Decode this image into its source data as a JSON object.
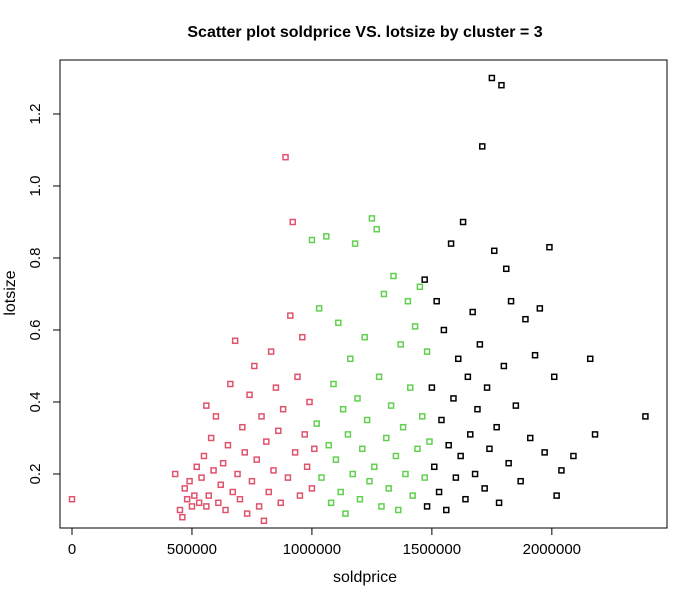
{
  "chart_data": {
    "type": "scatter",
    "title": "Scatter plot soldprice VS. lotsize by cluster = 3",
    "xlabel": "soldprice",
    "ylabel": "lotsize",
    "xlim": [
      -50000,
      2480000
    ],
    "ylim": [
      0.05,
      1.35
    ],
    "x_ticks": [
      0,
      500000,
      1000000,
      1500000,
      2000000
    ],
    "x_tick_labels": [
      "0",
      "500000",
      "1000000",
      "1500000",
      "2000000"
    ],
    "y_ticks": [
      0.2,
      0.4,
      0.6,
      0.8,
      1.0,
      1.2
    ],
    "y_tick_labels": [
      "0.2",
      "0.4",
      "0.6",
      "0.8",
      "1.0",
      "1.2"
    ],
    "grid": false,
    "legend": "none",
    "marker": "open-square",
    "series": [
      {
        "color": "#DF536B",
        "points": [
          [
            0,
            0.13
          ],
          [
            430000,
            0.2
          ],
          [
            450000,
            0.1
          ],
          [
            460000,
            0.08
          ],
          [
            470000,
            0.16
          ],
          [
            480000,
            0.13
          ],
          [
            490000,
            0.18
          ],
          [
            500000,
            0.11
          ],
          [
            510000,
            0.14
          ],
          [
            520000,
            0.22
          ],
          [
            530000,
            0.12
          ],
          [
            540000,
            0.19
          ],
          [
            550000,
            0.25
          ],
          [
            560000,
            0.11
          ],
          [
            560000,
            0.39
          ],
          [
            570000,
            0.14
          ],
          [
            580000,
            0.3
          ],
          [
            590000,
            0.21
          ],
          [
            600000,
            0.36
          ],
          [
            610000,
            0.12
          ],
          [
            620000,
            0.17
          ],
          [
            630000,
            0.23
          ],
          [
            640000,
            0.1
          ],
          [
            650000,
            0.28
          ],
          [
            660000,
            0.45
          ],
          [
            670000,
            0.15
          ],
          [
            680000,
            0.57
          ],
          [
            690000,
            0.2
          ],
          [
            700000,
            0.13
          ],
          [
            710000,
            0.33
          ],
          [
            720000,
            0.26
          ],
          [
            730000,
            0.09
          ],
          [
            740000,
            0.42
          ],
          [
            750000,
            0.18
          ],
          [
            760000,
            0.5
          ],
          [
            770000,
            0.24
          ],
          [
            780000,
            0.11
          ],
          [
            790000,
            0.36
          ],
          [
            800000,
            0.07
          ],
          [
            810000,
            0.29
          ],
          [
            820000,
            0.15
          ],
          [
            830000,
            0.54
          ],
          [
            840000,
            0.21
          ],
          [
            850000,
            0.44
          ],
          [
            860000,
            0.32
          ],
          [
            870000,
            0.12
          ],
          [
            880000,
            0.38
          ],
          [
            890000,
            1.08
          ],
          [
            900000,
            0.19
          ],
          [
            910000,
            0.64
          ],
          [
            920000,
            0.9
          ],
          [
            930000,
            0.26
          ],
          [
            940000,
            0.47
          ],
          [
            950000,
            0.14
          ],
          [
            960000,
            0.58
          ],
          [
            970000,
            0.31
          ],
          [
            980000,
            0.22
          ],
          [
            990000,
            0.4
          ],
          [
            1000000,
            0.16
          ],
          [
            1010000,
            0.27
          ]
        ]
      },
      {
        "color": "#61D04F",
        "points": [
          [
            1000000,
            0.85
          ],
          [
            1020000,
            0.34
          ],
          [
            1030000,
            0.66
          ],
          [
            1040000,
            0.19
          ],
          [
            1060000,
            0.86
          ],
          [
            1070000,
            0.28
          ],
          [
            1080000,
            0.12
          ],
          [
            1090000,
            0.45
          ],
          [
            1100000,
            0.24
          ],
          [
            1110000,
            0.62
          ],
          [
            1120000,
            0.15
          ],
          [
            1130000,
            0.38
          ],
          [
            1140000,
            0.09
          ],
          [
            1150000,
            0.31
          ],
          [
            1160000,
            0.52
          ],
          [
            1170000,
            0.2
          ],
          [
            1180000,
            0.84
          ],
          [
            1190000,
            0.41
          ],
          [
            1200000,
            0.13
          ],
          [
            1210000,
            0.27
          ],
          [
            1220000,
            0.58
          ],
          [
            1230000,
            0.35
          ],
          [
            1240000,
            0.18
          ],
          [
            1250000,
            0.91
          ],
          [
            1260000,
            0.22
          ],
          [
            1270000,
            0.88
          ],
          [
            1280000,
            0.47
          ],
          [
            1290000,
            0.11
          ],
          [
            1300000,
            0.7
          ],
          [
            1310000,
            0.3
          ],
          [
            1320000,
            0.16
          ],
          [
            1330000,
            0.39
          ],
          [
            1340000,
            0.75
          ],
          [
            1350000,
            0.25
          ],
          [
            1360000,
            0.1
          ],
          [
            1370000,
            0.56
          ],
          [
            1380000,
            0.33
          ],
          [
            1390000,
            0.2
          ],
          [
            1400000,
            0.68
          ],
          [
            1410000,
            0.44
          ],
          [
            1420000,
            0.14
          ],
          [
            1430000,
            0.61
          ],
          [
            1440000,
            0.27
          ],
          [
            1450000,
            0.72
          ],
          [
            1460000,
            0.36
          ],
          [
            1470000,
            0.19
          ],
          [
            1480000,
            0.54
          ],
          [
            1490000,
            0.29
          ]
        ]
      },
      {
        "color": "#000000",
        "points": [
          [
            1470000,
            0.74
          ],
          [
            1480000,
            0.11
          ],
          [
            1500000,
            0.44
          ],
          [
            1510000,
            0.22
          ],
          [
            1520000,
            0.68
          ],
          [
            1530000,
            0.15
          ],
          [
            1540000,
            0.35
          ],
          [
            1550000,
            0.6
          ],
          [
            1560000,
            0.1
          ],
          [
            1570000,
            0.28
          ],
          [
            1580000,
            0.84
          ],
          [
            1590000,
            0.41
          ],
          [
            1600000,
            0.19
          ],
          [
            1610000,
            0.52
          ],
          [
            1620000,
            0.25
          ],
          [
            1630000,
            0.9
          ],
          [
            1640000,
            0.13
          ],
          [
            1650000,
            0.47
          ],
          [
            1660000,
            0.31
          ],
          [
            1670000,
            0.65
          ],
          [
            1680000,
            0.2
          ],
          [
            1690000,
            0.38
          ],
          [
            1700000,
            0.56
          ],
          [
            1710000,
            1.11
          ],
          [
            1720000,
            0.16
          ],
          [
            1730000,
            0.44
          ],
          [
            1740000,
            0.27
          ],
          [
            1750000,
            1.3
          ],
          [
            1760000,
            0.82
          ],
          [
            1770000,
            0.33
          ],
          [
            1780000,
            0.12
          ],
          [
            1790000,
            1.28
          ],
          [
            1800000,
            0.5
          ],
          [
            1810000,
            0.77
          ],
          [
            1820000,
            0.23
          ],
          [
            1830000,
            0.68
          ],
          [
            1850000,
            0.39
          ],
          [
            1870000,
            0.18
          ],
          [
            1890000,
            0.63
          ],
          [
            1910000,
            0.3
          ],
          [
            1930000,
            0.53
          ],
          [
            1950000,
            0.66
          ],
          [
            1970000,
            0.26
          ],
          [
            1990000,
            0.83
          ],
          [
            2010000,
            0.47
          ],
          [
            2020000,
            0.14
          ],
          [
            2040000,
            0.21
          ],
          [
            2090000,
            0.25
          ],
          [
            2160000,
            0.52
          ],
          [
            2180000,
            0.31
          ],
          [
            2390000,
            0.36
          ]
        ]
      }
    ]
  }
}
